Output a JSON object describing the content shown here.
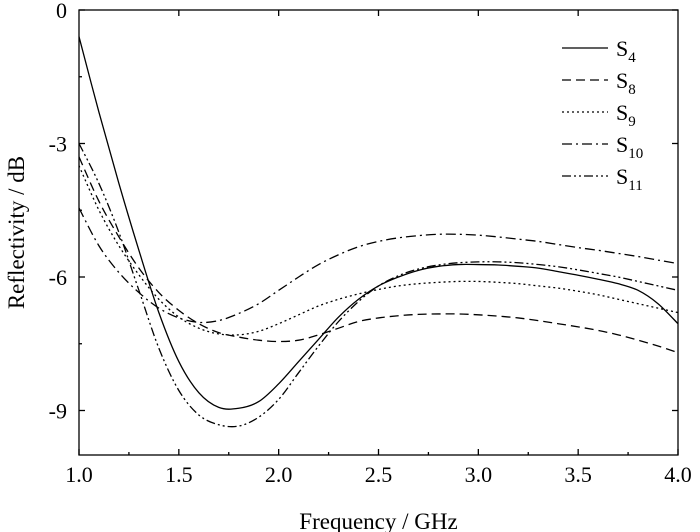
{
  "chart_data": {
    "type": "line",
    "xlabel": "Frequency / GHz",
    "ylabel": "Reflectivity / dB",
    "xlim": [
      1.0,
      4.0
    ],
    "ylim": [
      -10,
      0
    ],
    "x_ticks": [
      1.0,
      1.5,
      2.0,
      2.5,
      3.0,
      3.5,
      4.0
    ],
    "x_tick_labels": [
      "1.0",
      "1.5",
      "2.0",
      "2.5",
      "3.0",
      "3.5",
      "4.0"
    ],
    "y_ticks": [
      0,
      -3,
      -6,
      -9
    ],
    "y_tick_labels": [
      "0",
      "-3",
      "-6",
      "-9"
    ],
    "grid": false,
    "legend_position": "top-right",
    "series": [
      {
        "name": "S4",
        "name_main": "S",
        "name_sub": "4",
        "dash": "solid",
        "x": [
          1.0,
          1.1,
          1.2,
          1.3,
          1.4,
          1.5,
          1.6,
          1.7,
          1.8,
          1.9,
          2.0,
          2.1,
          2.2,
          2.3,
          2.4,
          2.5,
          2.6,
          2.7,
          2.8,
          2.9,
          3.0,
          3.1,
          3.2,
          3.3,
          3.4,
          3.5,
          3.6,
          3.7,
          3.8,
          3.9,
          4.0
        ],
        "y": [
          -0.6,
          -2.3,
          -3.9,
          -5.4,
          -6.8,
          -7.9,
          -8.6,
          -8.93,
          -8.95,
          -8.8,
          -8.4,
          -7.9,
          -7.4,
          -6.9,
          -6.5,
          -6.2,
          -6.0,
          -5.85,
          -5.76,
          -5.72,
          -5.72,
          -5.73,
          -5.76,
          -5.8,
          -5.88,
          -5.96,
          -6.05,
          -6.15,
          -6.3,
          -6.6,
          -7.05
        ]
      },
      {
        "name": "S8",
        "name_main": "S",
        "name_sub": "8",
        "dash": "dashed",
        "x": [
          1.0,
          1.1,
          1.2,
          1.3,
          1.4,
          1.5,
          1.6,
          1.7,
          1.8,
          1.9,
          2.0,
          2.1,
          2.2,
          2.3,
          2.4,
          2.5,
          2.6,
          2.7,
          2.8,
          2.9,
          3.0,
          3.1,
          3.2,
          3.3,
          3.4,
          3.5,
          3.6,
          3.7,
          3.8,
          3.9,
          4.0
        ],
        "y": [
          -3.3,
          -4.3,
          -5.1,
          -5.8,
          -6.35,
          -6.75,
          -7.05,
          -7.25,
          -7.35,
          -7.42,
          -7.45,
          -7.42,
          -7.3,
          -7.15,
          -7.0,
          -6.92,
          -6.87,
          -6.84,
          -6.83,
          -6.83,
          -6.85,
          -6.88,
          -6.92,
          -6.98,
          -7.05,
          -7.12,
          -7.2,
          -7.3,
          -7.42,
          -7.55,
          -7.7
        ]
      },
      {
        "name": "S9",
        "name_main": "S",
        "name_sub": "9",
        "dash": "dotted",
        "x": [
          1.0,
          1.1,
          1.2,
          1.3,
          1.4,
          1.5,
          1.6,
          1.7,
          1.8,
          1.9,
          2.0,
          2.1,
          2.2,
          2.3,
          2.4,
          2.5,
          2.6,
          2.7,
          2.8,
          2.9,
          3.0,
          3.1,
          3.2,
          3.3,
          3.4,
          3.5,
          3.6,
          3.7,
          3.8,
          3.9,
          4.0
        ],
        "y": [
          -3.5,
          -4.5,
          -5.3,
          -5.95,
          -6.5,
          -6.9,
          -7.15,
          -7.28,
          -7.3,
          -7.22,
          -7.05,
          -6.85,
          -6.65,
          -6.5,
          -6.38,
          -6.28,
          -6.2,
          -6.15,
          -6.12,
          -6.1,
          -6.1,
          -6.12,
          -6.15,
          -6.2,
          -6.25,
          -6.32,
          -6.4,
          -6.5,
          -6.6,
          -6.7,
          -6.8
        ]
      },
      {
        "name": "S10",
        "name_main": "S",
        "name_sub": "10",
        "dash": "dash-dot",
        "x": [
          1.0,
          1.1,
          1.2,
          1.3,
          1.4,
          1.5,
          1.6,
          1.7,
          1.8,
          1.9,
          2.0,
          2.1,
          2.2,
          2.3,
          2.4,
          2.5,
          2.6,
          2.7,
          2.8,
          2.9,
          3.0,
          3.1,
          3.2,
          3.3,
          3.4,
          3.5,
          3.6,
          3.7,
          3.8,
          3.9,
          4.0
        ],
        "y": [
          -4.45,
          -5.3,
          -5.9,
          -6.35,
          -6.7,
          -6.92,
          -7.02,
          -6.98,
          -6.82,
          -6.6,
          -6.3,
          -6.0,
          -5.72,
          -5.5,
          -5.32,
          -5.2,
          -5.12,
          -5.07,
          -5.04,
          -5.04,
          -5.06,
          -5.1,
          -5.15,
          -5.2,
          -5.27,
          -5.34,
          -5.4,
          -5.47,
          -5.54,
          -5.62,
          -5.7
        ]
      },
      {
        "name": "S11",
        "name_main": "S",
        "name_sub": "11",
        "dash": "dash-dot-dot",
        "x": [
          1.0,
          1.1,
          1.2,
          1.3,
          1.4,
          1.5,
          1.6,
          1.7,
          1.8,
          1.9,
          2.0,
          2.1,
          2.2,
          2.3,
          2.4,
          2.5,
          2.6,
          2.7,
          2.8,
          2.9,
          3.0,
          3.1,
          3.2,
          3.3,
          3.4,
          3.5,
          3.6,
          3.7,
          3.8,
          3.9,
          4.0
        ],
        "y": [
          -3.0,
          -3.9,
          -5.0,
          -6.3,
          -7.6,
          -8.55,
          -9.1,
          -9.32,
          -9.35,
          -9.15,
          -8.75,
          -8.15,
          -7.55,
          -7.0,
          -6.55,
          -6.2,
          -5.97,
          -5.82,
          -5.73,
          -5.68,
          -5.66,
          -5.66,
          -5.68,
          -5.72,
          -5.77,
          -5.84,
          -5.92,
          -6.0,
          -6.1,
          -6.2,
          -6.3
        ]
      }
    ]
  }
}
